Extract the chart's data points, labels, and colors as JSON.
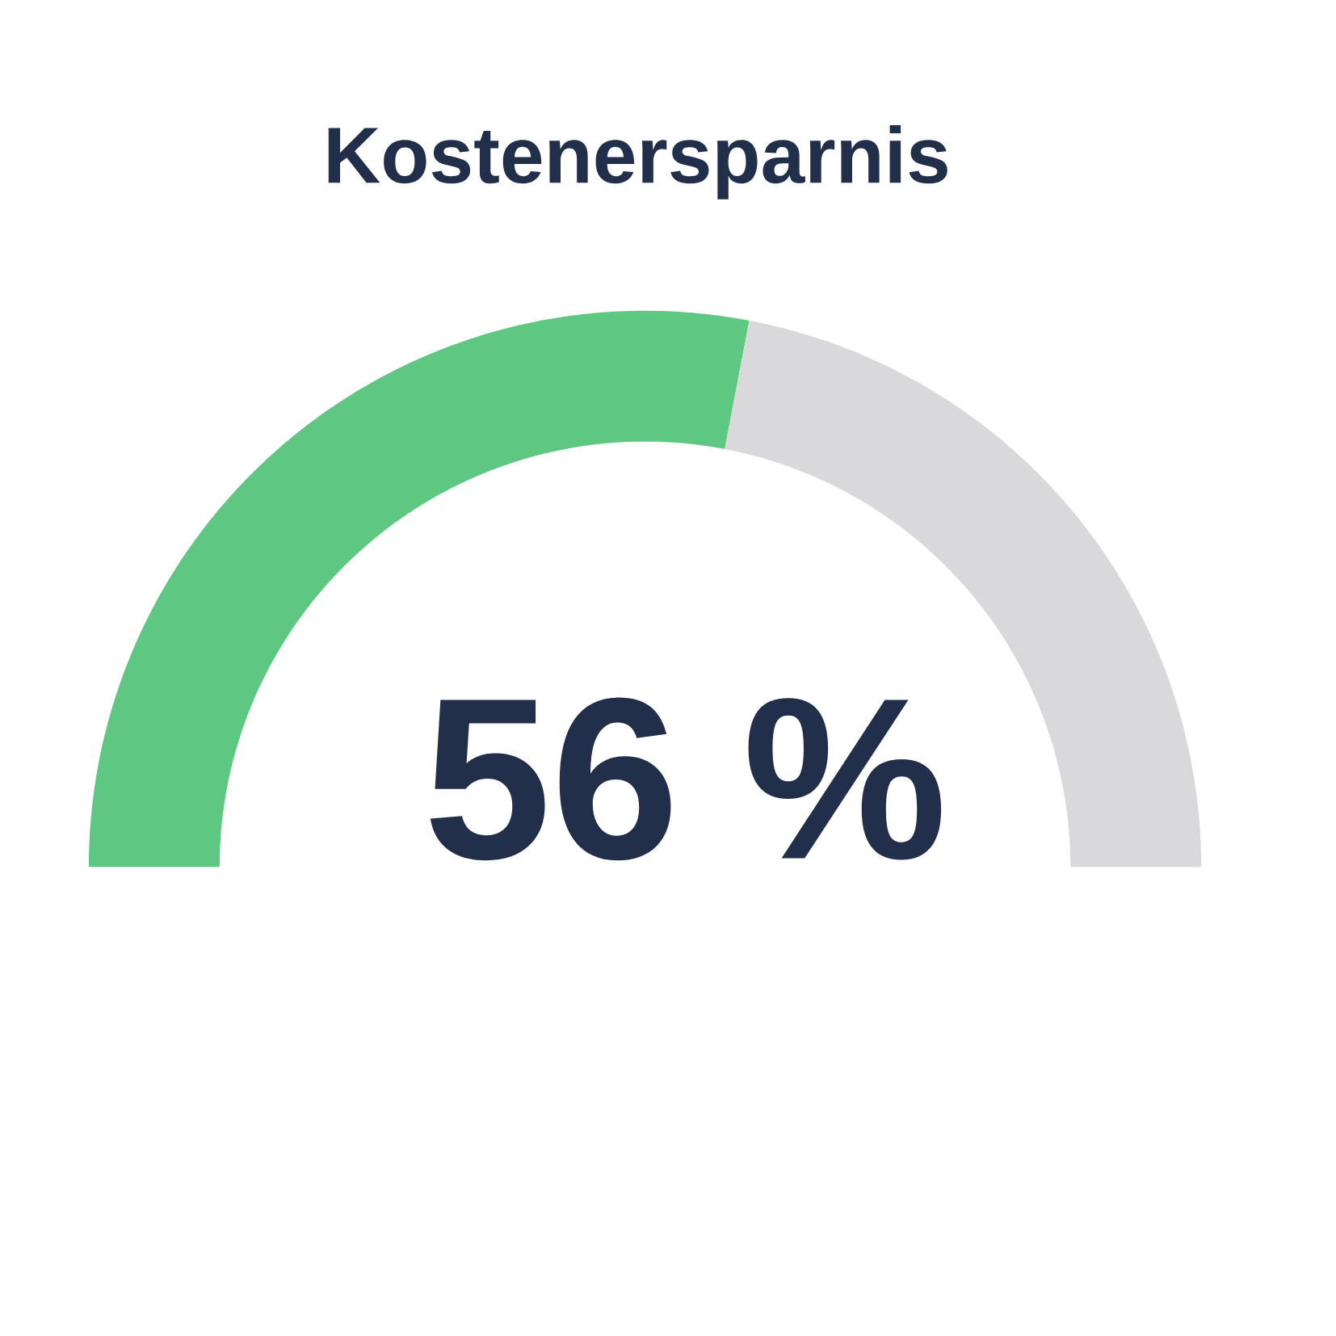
{
  "chart_data": {
    "type": "donut",
    "title": "Kostenersparnis",
    "categories": [
      null,
      null
    ],
    "values": [
      56,
      44
    ],
    "colors": [
      "#5ec782",
      "#d9d8db"
    ],
    "value_labels": [
      "56 %",
      null
    ]
  }
}
